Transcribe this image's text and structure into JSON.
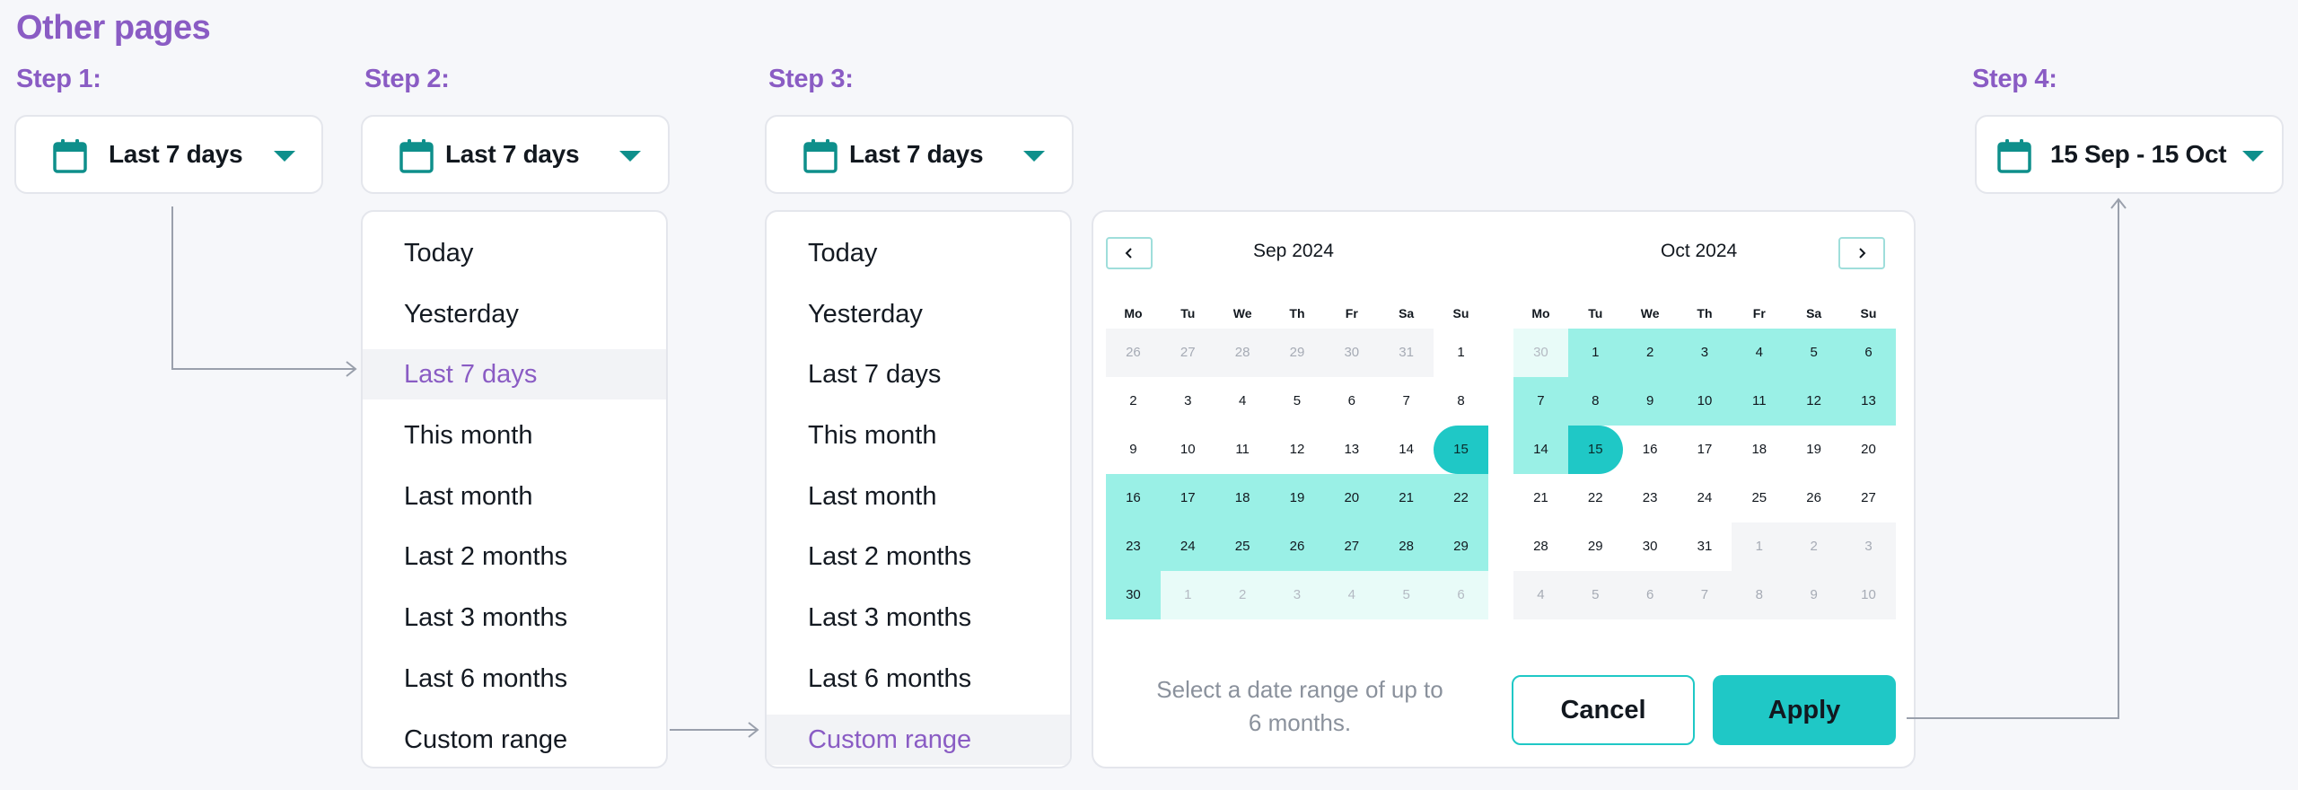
{
  "title": "Other pages",
  "steps": [
    {
      "label": "Step 1:",
      "trigger": "Last 7 days"
    },
    {
      "label": "Step 2:",
      "trigger": "Last 7 days"
    },
    {
      "label": "Step 3:",
      "trigger": "Last 7 days"
    },
    {
      "label": "Step 4:",
      "trigger": "15 Sep - 15 Oct"
    }
  ],
  "menu_items": [
    "Today",
    "Yesterday",
    "Last 7 days",
    "This month",
    "Last month",
    "Last 2 months",
    "Last 3 months",
    "Last 6 months",
    "Custom range"
  ],
  "menu_step2_active": "Last 7 days",
  "menu_step3_active": "Custom range",
  "calendar": {
    "prev_icon": "chevron-left-icon",
    "next_icon": "chevron-right-icon",
    "weekdays": [
      "Mo",
      "Tu",
      "We",
      "Th",
      "Fr",
      "Sa",
      "Su"
    ],
    "months": [
      {
        "title": "Sep 2024",
        "days": [
          {
            "d": "26",
            "t": "out"
          },
          {
            "d": "27",
            "t": "out"
          },
          {
            "d": "28",
            "t": "out"
          },
          {
            "d": "29",
            "t": "out"
          },
          {
            "d": "30",
            "t": "out"
          },
          {
            "d": "31",
            "t": "out"
          },
          {
            "d": "1",
            "t": "norm"
          },
          {
            "d": "2",
            "t": "norm"
          },
          {
            "d": "3",
            "t": "norm"
          },
          {
            "d": "4",
            "t": "norm"
          },
          {
            "d": "5",
            "t": "norm"
          },
          {
            "d": "6",
            "t": "norm"
          },
          {
            "d": "7",
            "t": "norm"
          },
          {
            "d": "8",
            "t": "norm"
          },
          {
            "d": "9",
            "t": "norm"
          },
          {
            "d": "10",
            "t": "norm"
          },
          {
            "d": "11",
            "t": "norm"
          },
          {
            "d": "12",
            "t": "norm"
          },
          {
            "d": "13",
            "t": "norm"
          },
          {
            "d": "14",
            "t": "norm"
          },
          {
            "d": "15",
            "t": "start"
          },
          {
            "d": "16",
            "t": "range"
          },
          {
            "d": "17",
            "t": "range"
          },
          {
            "d": "18",
            "t": "range"
          },
          {
            "d": "19",
            "t": "range"
          },
          {
            "d": "20",
            "t": "range"
          },
          {
            "d": "21",
            "t": "range"
          },
          {
            "d": "22",
            "t": "range"
          },
          {
            "d": "23",
            "t": "range"
          },
          {
            "d": "24",
            "t": "range"
          },
          {
            "d": "25",
            "t": "range"
          },
          {
            "d": "26",
            "t": "range"
          },
          {
            "d": "27",
            "t": "range"
          },
          {
            "d": "28",
            "t": "range"
          },
          {
            "d": "29",
            "t": "range"
          },
          {
            "d": "30",
            "t": "range"
          },
          {
            "d": "1",
            "t": "outrange"
          },
          {
            "d": "2",
            "t": "outrange"
          },
          {
            "d": "3",
            "t": "outrange"
          },
          {
            "d": "4",
            "t": "outrange"
          },
          {
            "d": "5",
            "t": "outrange"
          },
          {
            "d": "6",
            "t": "outrange"
          }
        ]
      },
      {
        "title": "Oct 2024",
        "days": [
          {
            "d": "30",
            "t": "outrange"
          },
          {
            "d": "1",
            "t": "range"
          },
          {
            "d": "2",
            "t": "range"
          },
          {
            "d": "3",
            "t": "range"
          },
          {
            "d": "4",
            "t": "range"
          },
          {
            "d": "5",
            "t": "range"
          },
          {
            "d": "6",
            "t": "range"
          },
          {
            "d": "7",
            "t": "range"
          },
          {
            "d": "8",
            "t": "range"
          },
          {
            "d": "9",
            "t": "range"
          },
          {
            "d": "10",
            "t": "range"
          },
          {
            "d": "11",
            "t": "range"
          },
          {
            "d": "12",
            "t": "range"
          },
          {
            "d": "13",
            "t": "range"
          },
          {
            "d": "14",
            "t": "range"
          },
          {
            "d": "15",
            "t": "end"
          },
          {
            "d": "16",
            "t": "norm"
          },
          {
            "d": "17",
            "t": "norm"
          },
          {
            "d": "18",
            "t": "norm"
          },
          {
            "d": "19",
            "t": "norm"
          },
          {
            "d": "20",
            "t": "norm"
          },
          {
            "d": "21",
            "t": "norm"
          },
          {
            "d": "22",
            "t": "norm"
          },
          {
            "d": "23",
            "t": "norm"
          },
          {
            "d": "24",
            "t": "norm"
          },
          {
            "d": "25",
            "t": "norm"
          },
          {
            "d": "26",
            "t": "norm"
          },
          {
            "d": "27",
            "t": "norm"
          },
          {
            "d": "28",
            "t": "norm"
          },
          {
            "d": "29",
            "t": "norm"
          },
          {
            "d": "30",
            "t": "norm"
          },
          {
            "d": "31",
            "t": "norm"
          },
          {
            "d": "1",
            "t": "out"
          },
          {
            "d": "2",
            "t": "out"
          },
          {
            "d": "3",
            "t": "out"
          },
          {
            "d": "4",
            "t": "out"
          },
          {
            "d": "5",
            "t": "out"
          },
          {
            "d": "6",
            "t": "out"
          },
          {
            "d": "7",
            "t": "out"
          },
          {
            "d": "8",
            "t": "out"
          },
          {
            "d": "9",
            "t": "out"
          },
          {
            "d": "10",
            "t": "out"
          }
        ]
      }
    ],
    "hint": "Select a date range of up to 6 months.",
    "cancel": "Cancel",
    "apply": "Apply"
  },
  "colors": {
    "accent_purple": "#8a5cc4",
    "teal": "#1fc8c6",
    "teal_icon": "#0e8f8b",
    "range_fill": "#9af0e6"
  }
}
